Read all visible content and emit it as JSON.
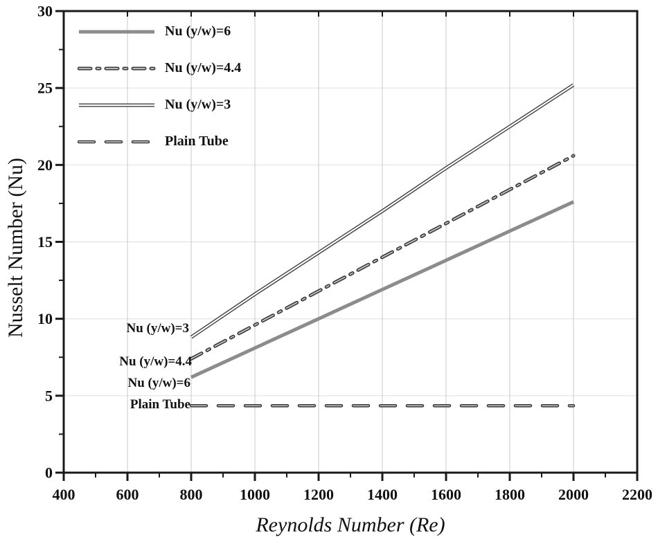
{
  "chart_data": {
    "type": "line",
    "title": "",
    "xlabel": "Reynolds Number (Re)",
    "ylabel": "Nusselt Number (Nu)",
    "xlim": [
      400,
      2200
    ],
    "ylim": [
      0,
      30
    ],
    "x_major_ticks": [
      400,
      600,
      800,
      1000,
      1200,
      1400,
      1600,
      1800,
      2000,
      2200
    ],
    "x_minor_step": 100,
    "y_major_ticks": [
      0,
      5,
      10,
      15,
      20,
      25,
      30
    ],
    "y_minor_step": 2.5,
    "grid": true,
    "legend_position": "top-left-inside",
    "x": [
      800,
      1000,
      1200,
      1400,
      1600,
      1800,
      2000
    ],
    "series": [
      {
        "name": "Nu (y/w)=6",
        "style": "solid-thick",
        "color": "#8c8c8c",
        "values": [
          6.2,
          8.1,
          10.0,
          11.9,
          13.8,
          15.7,
          17.6
        ]
      },
      {
        "name": "Nu (y/w)=4.4",
        "style": "dashdot-outline",
        "color": "#3a3a3a",
        "values": [
          7.4,
          9.6,
          11.8,
          14.0,
          16.2,
          18.4,
          20.6
        ]
      },
      {
        "name": "Nu (y/w)=3",
        "style": "double",
        "color": "#3f3f3f",
        "values": [
          8.8,
          11.6,
          14.3,
          17.0,
          19.8,
          22.5,
          25.2
        ]
      },
      {
        "name": "Plain Tube",
        "style": "dash-outline",
        "color": "#3a3a3a",
        "values": [
          4.35,
          4.35,
          4.35,
          4.35,
          4.35,
          4.35,
          4.35
        ]
      }
    ],
    "annotations": [
      {
        "text": "Nu (y/w)=3"
      },
      {
        "text": "Nu (y/w)=4.4"
      },
      {
        "text": "Nu (y/w)=6"
      },
      {
        "text": "Plain Tube"
      }
    ]
  },
  "colors": {
    "axis": "#1a1a1a",
    "grid_vertical": "#c8c8c8",
    "grid_horizontal": "#e2e2e2",
    "tick_text": "#111111",
    "background": "#ffffff"
  }
}
